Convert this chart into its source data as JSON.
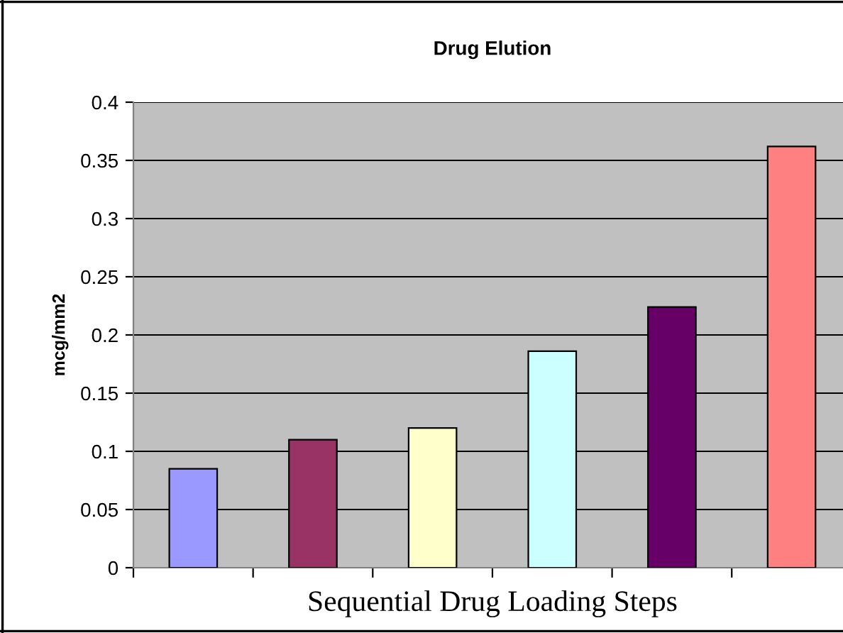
{
  "chart_data": {
    "type": "bar",
    "title": "Drug Elution",
    "xlabel": "Sequential Drug Loading Steps",
    "ylabel": "mcg/mm2",
    "categories": [
      null,
      null,
      null,
      null,
      null,
      null
    ],
    "values": [
      0.085,
      0.11,
      0.12,
      0.186,
      0.224,
      0.362
    ],
    "colors": [
      "#9999ff",
      "#993366",
      "#ffffcc",
      "#ccffff",
      "#660066",
      "#ff8080"
    ],
    "ylim": [
      0,
      0.4
    ],
    "yticks": [
      0,
      0.05,
      0.1,
      0.15,
      0.2,
      0.25,
      0.3,
      0.35,
      0.4
    ],
    "grid": "y"
  }
}
